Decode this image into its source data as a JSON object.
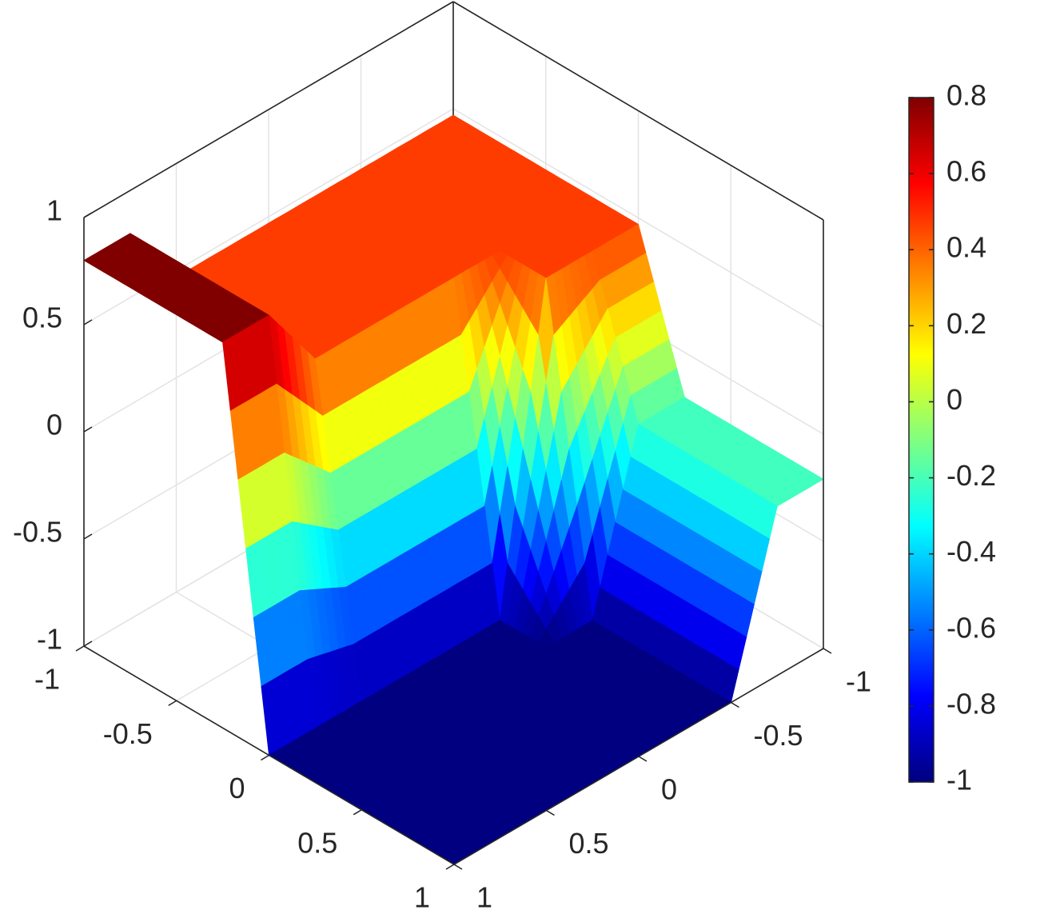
{
  "chart_data": {
    "type": "surface",
    "x": [
      -1,
      -0.75,
      -0.5,
      -0.25,
      0,
      0.25,
      0.5,
      0.75,
      1
    ],
    "y": [
      -1,
      -0.75,
      -0.5,
      -0.25,
      0,
      0.25,
      0.5,
      0.75,
      1
    ],
    "z": [
      [
        0.47,
        0.47,
        0.47,
        0.47,
        0.47,
        -0.21,
        -0.21,
        -0.21,
        -0.21
      ],
      [
        0.47,
        0.47,
        0.47,
        0.47,
        0.47,
        -0.21,
        -0.21,
        -0.21,
        -0.21
      ],
      [
        0.47,
        0.47,
        0.47,
        0.47,
        0.47,
        -1,
        -1,
        -1,
        -1
      ],
      [
        0.47,
        0.47,
        0.47,
        0.47,
        -1,
        -1,
        -1,
        -1,
        -1
      ],
      [
        0.47,
        0.47,
        0.47,
        0.47,
        -1,
        -1,
        -1,
        -1,
        -1
      ],
      [
        0.47,
        0.47,
        0.47,
        0.47,
        -1,
        -1,
        -1,
        -1,
        -1
      ],
      [
        0.47,
        0.47,
        0.47,
        0.47,
        -1,
        -1,
        -1,
        -1,
        -1
      ],
      [
        0.8,
        0.8,
        0.8,
        0.8,
        -1,
        -1,
        -1,
        -1,
        -1
      ],
      [
        0.8,
        0.8,
        0.8,
        0.8,
        -1,
        -1,
        -1,
        -1,
        -1
      ]
    ],
    "xlim": [
      -1,
      1
    ],
    "ylim": [
      -1,
      1
    ],
    "zlim": [
      -1,
      1
    ],
    "xticks": [
      -1,
      -0.5,
      0,
      0.5,
      1
    ],
    "yticks": [
      -1,
      -0.5,
      0,
      0.5,
      1
    ],
    "zticks": [
      -1,
      -0.5,
      0,
      0.5,
      1
    ],
    "grid": true,
    "colormap": "jet",
    "clim": [
      -1,
      0.8
    ],
    "colorbar_ticks": [
      -1,
      -0.8,
      -0.6,
      -0.4,
      -0.2,
      0,
      0.2,
      0.4,
      0.6,
      0.8
    ]
  }
}
